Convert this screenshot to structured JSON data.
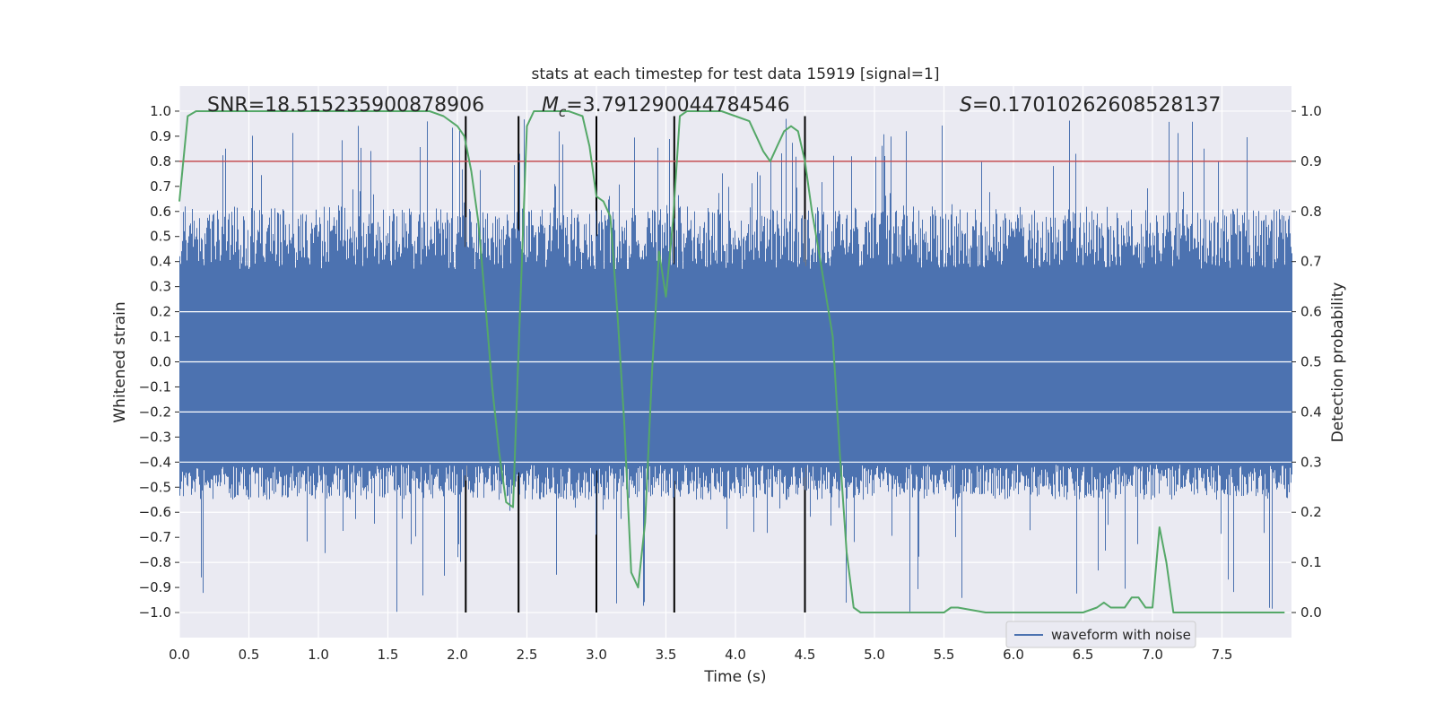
{
  "chart_data": {
    "type": "line",
    "title": "stats at each timestep for test data 15919 [signal=1]",
    "xlabel": "Time (s)",
    "ylabel_left": "Whitened strain",
    "ylabel_right": "Detection probability",
    "xlim": [
      0.0,
      8.0
    ],
    "ylim_left": [
      -1.1,
      1.1
    ],
    "ylim_right": [
      -0.05,
      1.05
    ],
    "x_ticks": [
      0.0,
      0.5,
      1.0,
      1.5,
      2.0,
      2.5,
      3.0,
      3.5,
      4.0,
      4.5,
      5.0,
      5.5,
      6.0,
      6.5,
      7.0,
      7.5
    ],
    "x_tick_labels": [
      "0.0",
      "0.5",
      "1.0",
      "1.5",
      "2.0",
      "2.5",
      "3.0",
      "3.5",
      "4.0",
      "4.5",
      "5.0",
      "5.5",
      "6.0",
      "6.5",
      "7.0",
      "7.5"
    ],
    "y_left_ticks": [
      1.0,
      0.9,
      0.8,
      0.7,
      0.6,
      0.5,
      0.4,
      0.3,
      0.2,
      0.1,
      0.0,
      -0.1,
      -0.2,
      -0.3,
      -0.4,
      -0.5,
      -0.6,
      -0.7,
      -0.8,
      -0.9,
      -1.0
    ],
    "y_left_tick_labels": [
      "1.0",
      "0.9",
      "0.8",
      "0.7",
      "0.6",
      "0.5",
      "0.4",
      "0.3",
      "0.2",
      "0.1",
      "0.0",
      "−0.1",
      "−0.2",
      "−0.3",
      "−0.4",
      "−0.5",
      "−0.6",
      "−0.7",
      "−0.8",
      "−0.9",
      "−1.0"
    ],
    "y_right_ticks": [
      1.0,
      0.9,
      0.8,
      0.7,
      0.6,
      0.5,
      0.4,
      0.3,
      0.2,
      0.1,
      0.0
    ],
    "y_right_tick_labels": [
      "1.0",
      "0.9",
      "0.8",
      "0.7",
      "0.6",
      "0.5",
      "0.4",
      "0.3",
      "0.2",
      "0.1",
      "0.0"
    ],
    "annotations": {
      "snr": "SNR=18.515235900878906",
      "mc_symbol": "M",
      "mc_sub": "c",
      "mc_value": "=3.791290044784546",
      "s_symbol": "S",
      "s_value": "=0.17010262608528137"
    },
    "threshold": {
      "value": 0.9,
      "axis": "right",
      "color": "#C44E52"
    },
    "vertical_lines_x": [
      2.06,
      2.44,
      3.0,
      3.56,
      4.5
    ],
    "vertical_line_range_left": [
      -1.0,
      0.98
    ],
    "series": [
      {
        "name": "waveform with noise",
        "axis": "left",
        "color": "#4C72B0",
        "style": "noise band",
        "core_band": [
          -0.41,
          0.37
        ],
        "typical_peak_max": 0.62,
        "typical_peak_min": -0.55,
        "max_value": 0.97,
        "min_value": -1.0,
        "seed": 15919
      },
      {
        "name": "detection probability",
        "axis": "right",
        "color": "#55A868",
        "x": [
          0.0,
          0.06,
          0.12,
          0.3,
          0.6,
          0.9,
          1.2,
          1.5,
          1.8,
          1.9,
          2.0,
          2.05,
          2.1,
          2.15,
          2.2,
          2.25,
          2.3,
          2.35,
          2.4,
          2.45,
          2.5,
          2.55,
          2.6,
          2.7,
          2.8,
          2.9,
          2.95,
          3.0,
          3.05,
          3.1,
          3.15,
          3.2,
          3.25,
          3.3,
          3.35,
          3.4,
          3.45,
          3.5,
          3.55,
          3.6,
          3.65,
          3.7,
          3.8,
          3.9,
          4.0,
          4.1,
          4.2,
          4.25,
          4.3,
          4.35,
          4.4,
          4.45,
          4.5,
          4.55,
          4.6,
          4.7,
          4.75,
          4.8,
          4.85,
          4.9,
          5.0,
          5.2,
          5.4,
          5.5,
          5.55,
          5.6,
          5.8,
          6.0,
          6.1,
          6.3,
          6.5,
          6.6,
          6.65,
          6.7,
          6.8,
          6.85,
          6.9,
          6.95,
          7.0,
          7.05,
          7.1,
          7.15,
          7.2,
          7.3,
          7.5,
          7.6,
          7.8,
          7.95
        ],
        "y": [
          0.82,
          0.99,
          1.0,
          1.0,
          1.0,
          1.0,
          1.0,
          1.0,
          1.0,
          0.99,
          0.97,
          0.95,
          0.88,
          0.78,
          0.62,
          0.45,
          0.32,
          0.22,
          0.21,
          0.6,
          0.97,
          1.0,
          1.0,
          1.0,
          1.0,
          0.99,
          0.93,
          0.83,
          0.82,
          0.79,
          0.6,
          0.38,
          0.08,
          0.05,
          0.18,
          0.48,
          0.72,
          0.63,
          0.78,
          0.99,
          1.0,
          1.0,
          1.0,
          1.0,
          0.99,
          0.98,
          0.92,
          0.9,
          0.93,
          0.96,
          0.97,
          0.96,
          0.9,
          0.8,
          0.72,
          0.55,
          0.32,
          0.12,
          0.01,
          0.0,
          0.0,
          0.0,
          0.0,
          0.0,
          0.01,
          0.01,
          0.0,
          0.0,
          0.0,
          0.0,
          0.0,
          0.01,
          0.02,
          0.01,
          0.01,
          0.03,
          0.03,
          0.01,
          0.01,
          0.17,
          0.1,
          0.0,
          0.0,
          0.0,
          0.0,
          0.0,
          0.0,
          0.0
        ]
      }
    ],
    "legend": {
      "placement": "bottom-right",
      "entries": [
        "waveform with noise"
      ]
    }
  }
}
